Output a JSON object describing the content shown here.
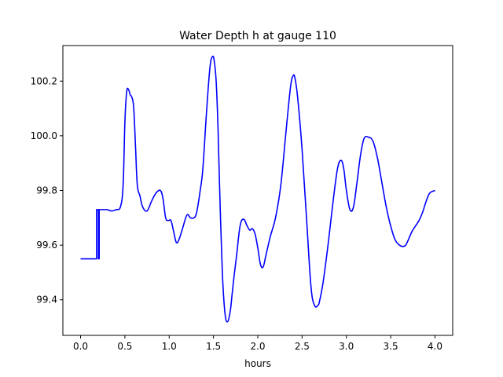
{
  "chart_data": {
    "type": "line",
    "title": "Water Depth h at gauge 110",
    "xlabel": "hours",
    "ylabel": "",
    "xlim": [
      -0.2,
      4.2
    ],
    "ylim": [
      99.27,
      100.33
    ],
    "x_ticks": [
      0.0,
      0.5,
      1.0,
      1.5,
      2.0,
      2.5,
      3.0,
      3.5,
      4.0
    ],
    "x_tick_labels": [
      "0.0",
      "0.5",
      "1.0",
      "1.5",
      "2.0",
      "2.5",
      "3.0",
      "3.5",
      "4.0"
    ],
    "y_ticks": [
      99.4,
      99.6,
      99.8,
      100.0,
      100.2
    ],
    "y_tick_labels": [
      "99.4",
      "99.6",
      "99.8",
      "100.0",
      "100.2"
    ],
    "grid": false,
    "series_color": "#0000ff",
    "series": [
      {
        "x": [
          0.0,
          0.17,
          0.18,
          0.18,
          0.2,
          0.2,
          0.21,
          0.21,
          0.25,
          0.3,
          0.35,
          0.4,
          0.45,
          0.48,
          0.5,
          0.52,
          0.54,
          0.56,
          0.58,
          0.6,
          0.62,
          0.64,
          0.67,
          0.7,
          0.75,
          0.8,
          0.85,
          0.9,
          0.93,
          0.96,
          0.99,
          1.02,
          1.05,
          1.08,
          1.11,
          1.15,
          1.2,
          1.24,
          1.28,
          1.31,
          1.35,
          1.38,
          1.42,
          1.46,
          1.49,
          1.51,
          1.53,
          1.55,
          1.57,
          1.6,
          1.63,
          1.66,
          1.69,
          1.71,
          1.73,
          1.76,
          1.8,
          1.84,
          1.88,
          1.91,
          1.94,
          1.97,
          2.0,
          2.03,
          2.06,
          2.09,
          2.14,
          2.2,
          2.26,
          2.32,
          2.37,
          2.4,
          2.42,
          2.45,
          2.5,
          2.55,
          2.6,
          2.64,
          2.68,
          2.7,
          2.74,
          2.8,
          2.85,
          2.9,
          2.94,
          2.97,
          3.0,
          3.04,
          3.08,
          3.12,
          3.16,
          3.2,
          3.25,
          3.3,
          3.35,
          3.4,
          3.45,
          3.5,
          3.55,
          3.6,
          3.64,
          3.67,
          3.7,
          3.74,
          3.78,
          3.82,
          3.86,
          3.9,
          3.94,
          4.0
        ],
        "y": [
          99.55,
          99.55,
          99.55,
          99.73,
          99.73,
          99.55,
          99.55,
          99.73,
          99.73,
          99.73,
          99.725,
          99.73,
          99.74,
          99.82,
          100.05,
          100.16,
          100.17,
          100.15,
          100.14,
          100.1,
          99.96,
          99.82,
          99.78,
          99.74,
          99.725,
          99.76,
          99.79,
          99.8,
          99.77,
          99.7,
          99.69,
          99.69,
          99.65,
          99.61,
          99.62,
          99.66,
          99.71,
          99.7,
          99.7,
          99.72,
          99.8,
          99.88,
          100.08,
          100.25,
          100.29,
          100.27,
          100.2,
          100.04,
          99.8,
          99.5,
          99.35,
          99.32,
          99.36,
          99.42,
          99.48,
          99.56,
          99.67,
          99.695,
          99.67,
          99.655,
          99.66,
          99.64,
          99.59,
          99.53,
          99.52,
          99.56,
          99.63,
          99.7,
          99.82,
          100.02,
          100.18,
          100.22,
          100.21,
          100.14,
          99.95,
          99.7,
          99.45,
          99.38,
          99.38,
          99.4,
          99.47,
          99.62,
          99.76,
          99.88,
          99.91,
          99.88,
          99.8,
          99.73,
          99.74,
          99.83,
          99.93,
          99.99,
          99.995,
          99.98,
          99.92,
          99.83,
          99.74,
          99.67,
          99.62,
          99.6,
          99.595,
          99.6,
          99.62,
          99.65,
          99.67,
          99.69,
          99.72,
          99.76,
          99.79,
          99.8
        ]
      }
    ]
  }
}
